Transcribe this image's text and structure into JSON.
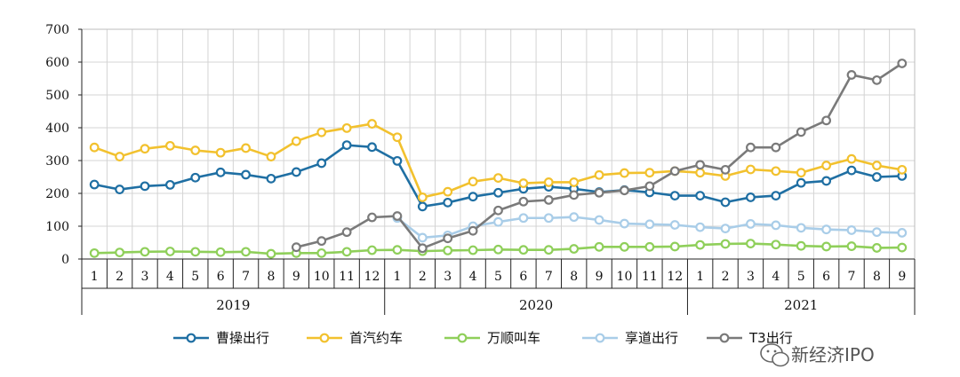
{
  "chart_data": {
    "type": "line",
    "title": "",
    "xlabel": "",
    "ylabel": "",
    "ylim": [
      0,
      700
    ],
    "yticks": [
      0,
      100,
      200,
      300,
      400,
      500,
      600,
      700
    ],
    "grid": true,
    "legend_position": "bottom",
    "x_month_labels": [
      "1",
      "2",
      "3",
      "4",
      "5",
      "6",
      "7",
      "8",
      "9",
      "10",
      "11",
      "12",
      "1",
      "2",
      "3",
      "4",
      "5",
      "6",
      "7",
      "8",
      "9",
      "10",
      "11",
      "12",
      "1",
      "2",
      "3",
      "4",
      "5",
      "6",
      "7",
      "8",
      "9"
    ],
    "year_groups": [
      {
        "label": "2019",
        "count": 12
      },
      {
        "label": "2020",
        "count": 12
      },
      {
        "label": "2021",
        "count": 9
      }
    ],
    "series": [
      {
        "name": "曹操出行",
        "color": "#1f6fa3",
        "values": [
          227,
          212,
          222,
          226,
          248,
          264,
          257,
          245,
          265,
          292,
          347,
          341,
          299,
          160,
          172,
          190,
          202,
          214,
          220,
          214,
          204,
          210,
          203,
          193,
          193,
          173,
          188,
          193,
          232,
          238,
          270,
          250,
          253
        ]
      },
      {
        "name": "首汽约车",
        "color": "#f2c12e",
        "values": [
          340,
          312,
          336,
          345,
          331,
          324,
          338,
          312,
          359,
          386,
          399,
          412,
          371,
          188,
          205,
          236,
          247,
          231,
          234,
          234,
          256,
          262,
          263,
          268,
          263,
          253,
          273,
          268,
          263,
          285,
          305,
          285,
          272
        ]
      },
      {
        "name": "万顺叫车",
        "color": "#8fcf5a",
        "values": [
          18,
          20,
          22,
          23,
          22,
          21,
          22,
          16,
          18,
          18,
          22,
          27,
          28,
          24,
          26,
          27,
          29,
          28,
          28,
          31,
          37,
          37,
          37,
          38,
          43,
          46,
          47,
          44,
          40,
          38,
          39,
          34,
          35
        ]
      },
      {
        "name": "享道出行",
        "color": "#a9cde8",
        "values": [
          null,
          null,
          null,
          null,
          null,
          null,
          null,
          null,
          null,
          null,
          null,
          null,
          125,
          65,
          72,
          100,
          113,
          125,
          125,
          128,
          119,
          108,
          106,
          104,
          97,
          93,
          107,
          103,
          95,
          90,
          88,
          82,
          80
        ]
      },
      {
        "name": "T3出行",
        "color": "#7a7a7a",
        "values": [
          null,
          null,
          null,
          null,
          null,
          null,
          null,
          null,
          36,
          55,
          82,
          127,
          131,
          33,
          63,
          86,
          148,
          175,
          180,
          195,
          202,
          209,
          222,
          268,
          287,
          272,
          340,
          340,
          387,
          422,
          561,
          545,
          596
        ]
      }
    ]
  },
  "watermark": {
    "text": "新经济IPO",
    "icon": "wechat-icon"
  }
}
